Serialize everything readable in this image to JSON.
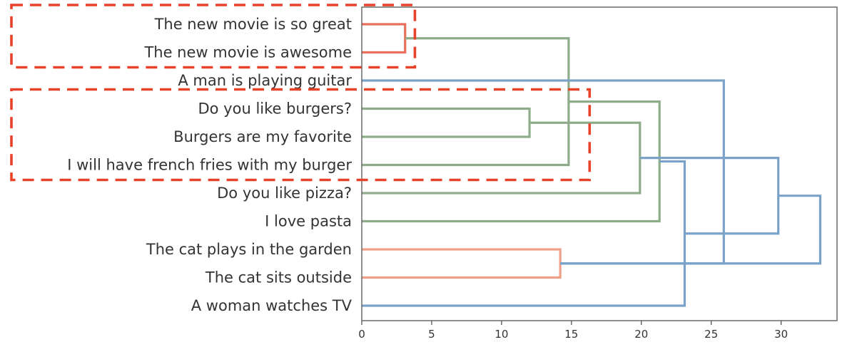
{
  "chart_data": {
    "type": "dendrogram",
    "orientation": "horizontal",
    "xlim": [
      0,
      34
    ],
    "xticks": [
      "0",
      "5",
      "10",
      "15",
      "20",
      "25",
      "30"
    ],
    "xtick_values": [
      0,
      5,
      10,
      15,
      20,
      25,
      30
    ],
    "leaves": [
      "The new movie is so great",
      "The new movie is awesome",
      "A man is playing guitar",
      "Do you like burgers?",
      "Burgers are my favorite",
      "I will have french fries with my burger",
      "Do you like pizza?",
      "I love pasta",
      "The cat plays in the garden",
      "The cat sits outside",
      "A woman watches TV"
    ],
    "links": [
      {
        "a": 0,
        "b": 1,
        "distance": 3.1,
        "color": "#e8705a"
      },
      {
        "a": 3,
        "b": 4,
        "distance": 12.0,
        "color": "#8fac8a"
      },
      {
        "a": 11,
        "b": 5,
        "distance": 14.8,
        "color": "#8fac8a"
      },
      {
        "a": 12,
        "b": 6,
        "distance": 19.9,
        "color": "#8fac8a"
      },
      {
        "a": 13,
        "b": 7,
        "distance": 21.3,
        "color": "#8fac8a"
      },
      {
        "a": 8,
        "b": 9,
        "distance": 14.2,
        "color": "#f0a086"
      },
      {
        "a": 15,
        "b": 10,
        "distance": 23.1,
        "color": "#7ba3c9"
      },
      {
        "a": 16,
        "b": 2,
        "distance": 25.9,
        "color": "#7ba3c9"
      },
      {
        "a": 17,
        "b": 14,
        "distance": 29.8,
        "color": "#7ba3c9"
      },
      {
        "a": 19,
        "b": 16,
        "distance": 32.8,
        "color": "#7ba3c9"
      }
    ],
    "highlight_boxes": [
      {
        "first_leaf": 0,
        "last_leaf": 1,
        "distance": 3.8,
        "color": "#e8432a"
      },
      {
        "first_leaf": 3,
        "last_leaf": 5,
        "distance": 16.3,
        "color": "#e8432a"
      }
    ]
  }
}
